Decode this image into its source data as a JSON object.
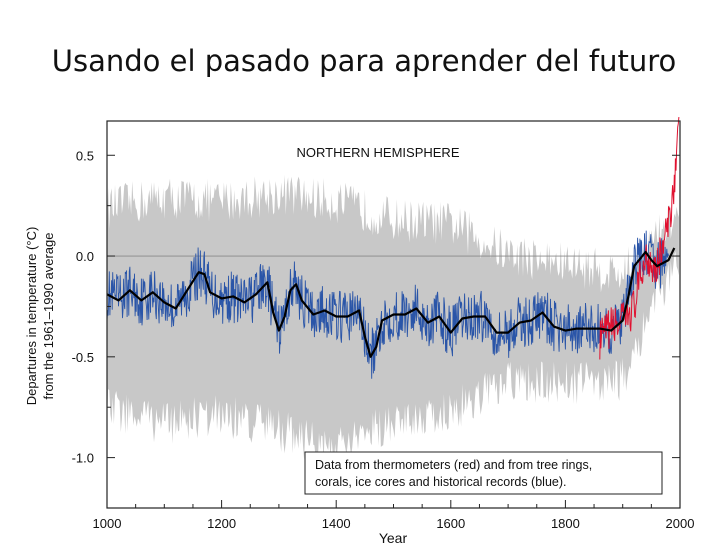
{
  "slide": {
    "title": "Usando el pasado para aprender del futuro"
  },
  "chart_data": {
    "type": "line",
    "title": "NORTHERN HEMISPHERE",
    "xlabel": "Year",
    "ylabel_line1": "Departures in temperature (°C)",
    "ylabel_line2": "from the 1961–1990 average",
    "xlim": [
      1000,
      2000
    ],
    "ylim": [
      -1.25,
      0.67
    ],
    "x_ticks": [
      1000,
      1200,
      1400,
      1600,
      1800,
      2000
    ],
    "x_tick_labels": [
      "1000",
      "1200",
      "1400",
      "1600",
      "1800",
      "2000"
    ],
    "y_ticks": [
      0.5,
      0.0,
      -0.5,
      -1.0
    ],
    "y_tick_labels": [
      "0.5",
      "0.0",
      "-0.5",
      "-1.0"
    ],
    "reference_line": 0.0,
    "annotation_line1": "Data from thermometers (red) and from tree rings,",
    "annotation_line2": "corals, ice cores and historical records (blue).",
    "colors": {
      "uncertainty": "#c8c8c8",
      "proxy": "#2a55a8",
      "thermometer": "#e0102f",
      "smoothed": "#000000"
    },
    "series": [
      {
        "name": "smoothed",
        "x": [
          1000,
          1020,
          1040,
          1060,
          1080,
          1100,
          1120,
          1140,
          1160,
          1170,
          1180,
          1200,
          1220,
          1240,
          1260,
          1280,
          1290,
          1300,
          1310,
          1320,
          1330,
          1340,
          1360,
          1380,
          1400,
          1420,
          1440,
          1450,
          1460,
          1470,
          1480,
          1500,
          1520,
          1540,
          1560,
          1580,
          1600,
          1620,
          1640,
          1660,
          1680,
          1700,
          1720,
          1740,
          1760,
          1780,
          1800,
          1820,
          1840,
          1860,
          1880,
          1900,
          1910,
          1920,
          1940,
          1950,
          1960,
          1980,
          1990
        ],
        "y": [
          -0.19,
          -0.22,
          -0.17,
          -0.22,
          -0.18,
          -0.23,
          -0.26,
          -0.17,
          -0.08,
          -0.09,
          -0.18,
          -0.21,
          -0.2,
          -0.23,
          -0.19,
          -0.13,
          -0.28,
          -0.37,
          -0.3,
          -0.17,
          -0.14,
          -0.22,
          -0.29,
          -0.27,
          -0.3,
          -0.3,
          -0.27,
          -0.4,
          -0.5,
          -0.45,
          -0.32,
          -0.29,
          -0.29,
          -0.26,
          -0.33,
          -0.3,
          -0.38,
          -0.31,
          -0.3,
          -0.3,
          -0.38,
          -0.38,
          -0.33,
          -0.32,
          -0.28,
          -0.35,
          -0.37,
          -0.36,
          -0.36,
          -0.36,
          -0.37,
          -0.32,
          -0.2,
          -0.05,
          0.02,
          -0.02,
          -0.05,
          -0.02,
          0.04
        ]
      },
      {
        "name": "thermometers",
        "x": [
          1860,
          1880,
          1900,
          1920,
          1940,
          1960,
          1980,
          1990,
          1998
        ],
        "y": [
          -0.42,
          -0.35,
          -0.33,
          -0.25,
          0.0,
          -0.05,
          0.15,
          0.38,
          0.62
        ]
      }
    ],
    "uncertainty_band": {
      "x": [
        1000,
        1100,
        1200,
        1300,
        1400,
        1500,
        1600,
        1700,
        1800,
        1900,
        1950,
        1998
      ],
      "upper": [
        0.23,
        0.28,
        0.26,
        0.3,
        0.26,
        0.17,
        0.15,
        0.0,
        -0.05,
        -0.1,
        0.05,
        0.2
      ],
      "lower": [
        -0.75,
        -0.82,
        -0.78,
        -0.85,
        -0.95,
        -0.8,
        -0.76,
        -0.62,
        -0.62,
        -0.6,
        -0.25,
        -0.05
      ]
    }
  }
}
